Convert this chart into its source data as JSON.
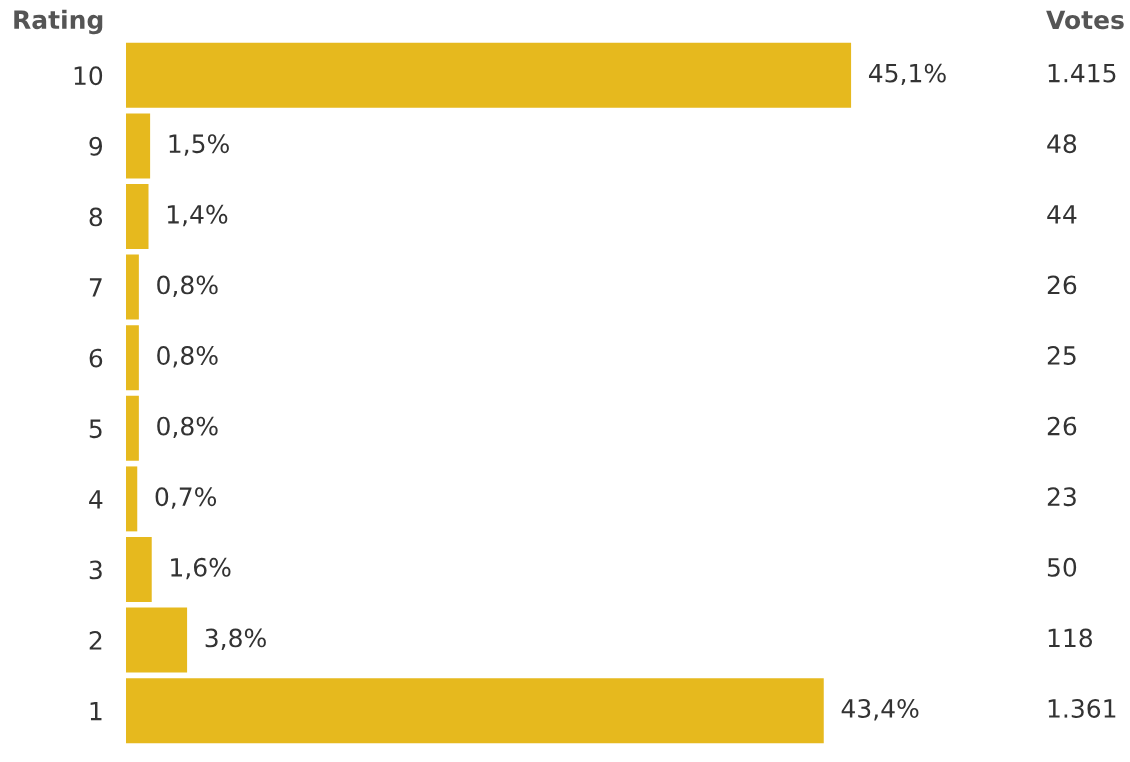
{
  "chart_data": {
    "type": "bar",
    "orientation": "horizontal",
    "ylabel": "Rating",
    "categories": [
      "10",
      "9",
      "8",
      "7",
      "6",
      "5",
      "4",
      "3",
      "2",
      "1"
    ],
    "values": [
      45.1,
      1.5,
      1.4,
      0.8,
      0.8,
      0.8,
      0.7,
      1.6,
      3.8,
      43.4
    ],
    "value_labels": [
      "45,1%",
      "1,5%",
      "1,4%",
      "0,8%",
      "0,8%",
      "0,8%",
      "0,7%",
      "1,6%",
      "3,8%",
      "43,4%"
    ],
    "color": "#e6b91e",
    "grid": false,
    "annotations": [
      "Votes",
      "1.415",
      "48",
      "44",
      "26",
      "25",
      "26",
      "23",
      "50",
      "118",
      "1.361"
    ]
  }
}
